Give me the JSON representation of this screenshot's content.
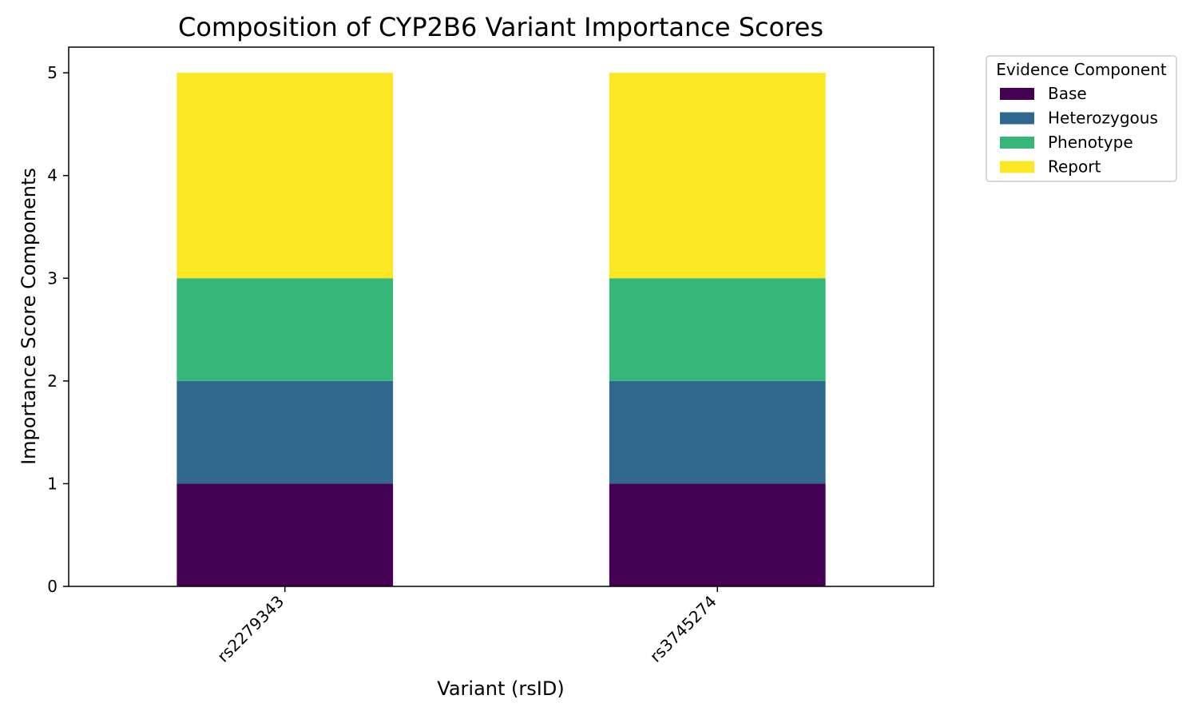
{
  "chart_data": {
    "type": "bar",
    "stacked": true,
    "title": "Composition of CYP2B6 Variant Importance Scores",
    "xlabel": "Variant (rsID)",
    "ylabel": "Importance Score Components",
    "categories": [
      "rs2279343",
      "rs3745274"
    ],
    "series": [
      {
        "name": "Base",
        "values": [
          1,
          1
        ],
        "color": "#440154"
      },
      {
        "name": "Heterozygous",
        "values": [
          1,
          1
        ],
        "color": "#31688e"
      },
      {
        "name": "Phenotype",
        "values": [
          1,
          1
        ],
        "color": "#35b779"
      },
      {
        "name": "Report",
        "values": [
          2,
          2
        ],
        "color": "#fde725"
      }
    ],
    "ylim": [
      0,
      5.25
    ],
    "yticks": [
      0,
      1,
      2,
      3,
      4,
      5
    ],
    "grid": false,
    "legend": {
      "title": "Evidence Component",
      "placement": "outside upper right"
    },
    "xtick_rotation": 45
  }
}
